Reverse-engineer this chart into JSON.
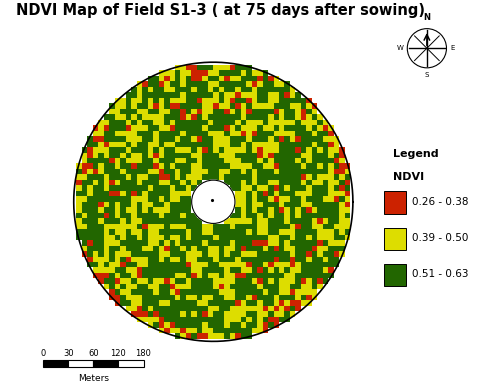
{
  "title": "NDVI Map of Field S1-3 ( at 75 days after sowing)",
  "title_fontsize": 10.5,
  "colors": {
    "red": "#CC2200",
    "yellow": "#DDDD00",
    "green": "#226600",
    "background": "#ffffff"
  },
  "legend_title": "Legend",
  "legend_subtitle": "NDVI",
  "legend_entries": [
    "0.26 - 0.38",
    "0.39 - 0.50",
    "0.51 - 0.63"
  ],
  "scalebar_values": [
    0,
    30,
    60,
    120,
    180
  ],
  "scalebar_label": "Meters",
  "seed": 42
}
